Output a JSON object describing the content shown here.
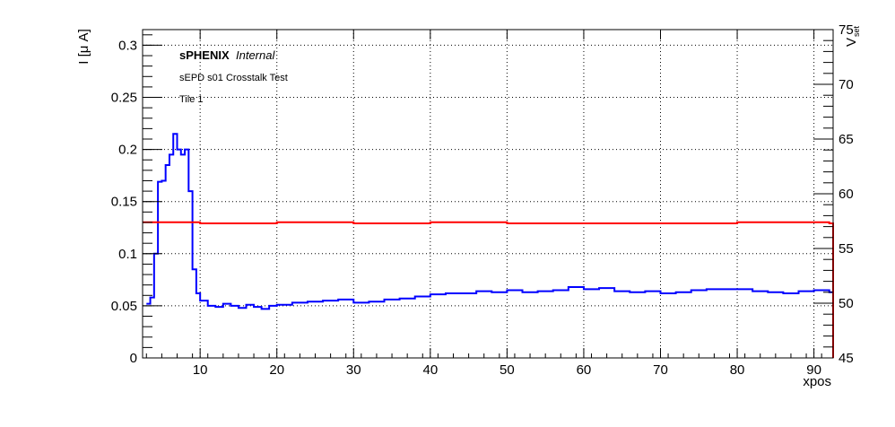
{
  "chart_data": {
    "type": "line",
    "title_lines": {
      "experiment": "sPHENIX",
      "status": "Internal",
      "subtitle": "sEPD s01 Crosstalk Test",
      "tile": "Tile 1"
    },
    "xlabel": "xpos",
    "ylabel_left": "I [μ A]",
    "ylabel_right_main": "V",
    "ylabel_right_sub": "set",
    "xlim": [
      2.5,
      92.5
    ],
    "ylim_left": [
      0,
      0.315
    ],
    "ylim_right": [
      45,
      75
    ],
    "x_ticks": [
      "10",
      "20",
      "30",
      "40",
      "50",
      "60",
      "70",
      "80",
      "90"
    ],
    "y_ticks_left": [
      "0",
      "0.05",
      "0.1",
      "0.15",
      "0.2",
      "0.25",
      "0.3"
    ],
    "y_ticks_right": [
      "45",
      "50",
      "55",
      "60",
      "65",
      "70",
      "75"
    ],
    "grid": true,
    "colors": {
      "current": "#0000ff",
      "voltage": "#ff0000"
    },
    "series": [
      {
        "axis": "left",
        "x": [
          3,
          3.5,
          4,
          4.5,
          5,
          5.5,
          6,
          6.5,
          7,
          7.5,
          8,
          8.5,
          9,
          9.5,
          10,
          11,
          12,
          13,
          14,
          15,
          16,
          17,
          18,
          19,
          20,
          22,
          24,
          26,
          28,
          30,
          32,
          34,
          36,
          38,
          40,
          42,
          44,
          46,
          48,
          50,
          52,
          54,
          56,
          58,
          60,
          62,
          64,
          66,
          68,
          70,
          72,
          74,
          76,
          78,
          80,
          82,
          84,
          86,
          88,
          90,
          92
        ],
        "values": [
          0.052,
          0.058,
          0.1,
          0.169,
          0.17,
          0.185,
          0.195,
          0.215,
          0.2,
          0.195,
          0.2,
          0.16,
          0.085,
          0.062,
          0.055,
          0.05,
          0.049,
          0.052,
          0.05,
          0.048,
          0.051,
          0.049,
          0.047,
          0.05,
          0.051,
          0.053,
          0.054,
          0.055,
          0.056,
          0.053,
          0.054,
          0.056,
          0.057,
          0.059,
          0.061,
          0.062,
          0.062,
          0.064,
          0.063,
          0.065,
          0.063,
          0.064,
          0.065,
          0.068,
          0.066,
          0.067,
          0.064,
          0.063,
          0.064,
          0.062,
          0.063,
          0.065,
          0.066,
          0.066,
          0.066,
          0.064,
          0.063,
          0.062,
          0.064,
          0.065,
          0.063
        ]
      },
      {
        "axis": "right",
        "x": [
          2.5,
          10,
          20,
          30,
          40,
          50,
          60,
          70,
          80,
          92
        ],
        "values": [
          57.4,
          57.3,
          57.4,
          57.3,
          57.4,
          57.3,
          57.3,
          57.3,
          57.4,
          57.3
        ]
      }
    ]
  }
}
